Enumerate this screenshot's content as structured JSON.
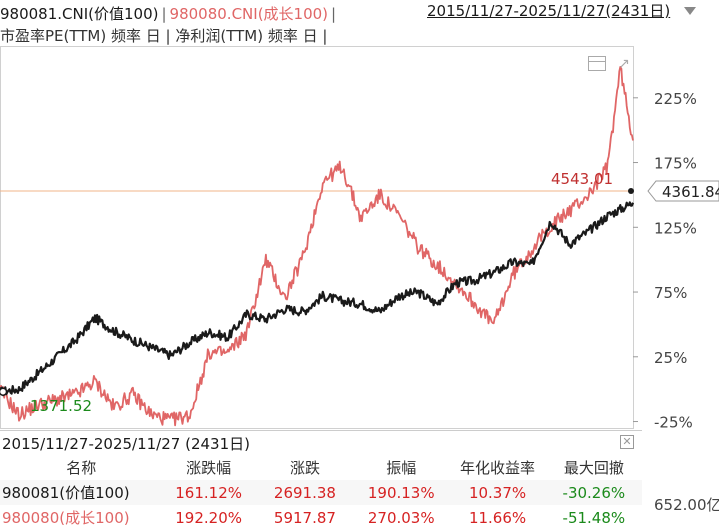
{
  "header": {
    "series1": "980081.CNI(价值100)",
    "series2": "980080.CNI(成长100)",
    "separator": "|",
    "range": "2015/11/27-2025/11/27(2431日)",
    "line2": "市盈率PE(TTM) 频率 日 | 净利润(TTM) 频率 日 |"
  },
  "colors": {
    "series1": "#1a1a1a",
    "series2": "#e06666",
    "ref_line": "#f2b48a",
    "positive": "#d62222",
    "negative": "#1b8a1b"
  },
  "icons": [
    "window-icon",
    "arrow-icon",
    "dropdown-caret-icon",
    "close-icon"
  ],
  "chart_data": {
    "type": "line",
    "x_start": "2015/11/27",
    "x_end": "2025/11/27",
    "y_tick_labels": [
      "225%",
      "175%",
      "125%",
      "75%",
      "25%",
      "-25%"
    ],
    "y_ticks": [
      225,
      175,
      125,
      75,
      25,
      -25
    ],
    "ylim": [
      -30,
      265
    ],
    "annotations": {
      "ref_value_label": "4543.01",
      "ref_level_pct": 153,
      "current_label": "4361.84",
      "min_label": "1371.52",
      "bottom_right_label": "652.00亿"
    },
    "series": [
      {
        "name": "980081.CNI(价值100)",
        "x": [
          0,
          3,
          6,
          9,
          12,
          15,
          18,
          21,
          24,
          27,
          30,
          33,
          36,
          39,
          42,
          45,
          48,
          51,
          54,
          57,
          60,
          63,
          66,
          69,
          72,
          75,
          78,
          81,
          84,
          87,
          90,
          93,
          96,
          100
        ],
        "values": [
          -2,
          0,
          12,
          25,
          38,
          55,
          45,
          38,
          32,
          26,
          36,
          44,
          40,
          58,
          54,
          62,
          60,
          72,
          68,
          66,
          60,
          72,
          75,
          66,
          82,
          84,
          90,
          98,
          96,
          130,
          112,
          122,
          134,
          144
        ]
      },
      {
        "name": "980080.CNI(成长100)",
        "x": [
          0,
          3,
          6,
          9,
          12,
          15,
          18,
          21,
          24,
          27,
          30,
          33,
          36,
          39,
          42,
          45,
          48,
          51,
          54,
          57,
          60,
          63,
          66,
          69,
          72,
          75,
          78,
          81,
          84,
          87,
          90,
          93,
          96,
          98,
          100
        ],
        "values": [
          0,
          -20,
          -12,
          -8,
          -4,
          6,
          -14,
          -4,
          -20,
          -24,
          -20,
          28,
          28,
          44,
          100,
          70,
          104,
          160,
          172,
          132,
          150,
          134,
          110,
          96,
          82,
          66,
          50,
          88,
          108,
          126,
          138,
          150,
          172,
          248,
          192
        ]
      }
    ]
  },
  "table": {
    "title": "2015/11/27-2025/11/27 (2431日)",
    "columns": [
      "名称",
      "涨跌幅",
      "涨跌",
      "振幅",
      "年化收益率",
      "最大回撤"
    ],
    "rows": [
      {
        "name": "980081(价值100)",
        "chg_pct": "161.12%",
        "chg": "2691.38",
        "amp": "190.13%",
        "annual": "10.37%",
        "mdd": "-30.26%"
      },
      {
        "name": "980080(成长100)",
        "chg_pct": "192.20%",
        "chg": "5917.87",
        "amp": "270.03%",
        "annual": "11.66%",
        "mdd": "-51.48%"
      }
    ]
  }
}
